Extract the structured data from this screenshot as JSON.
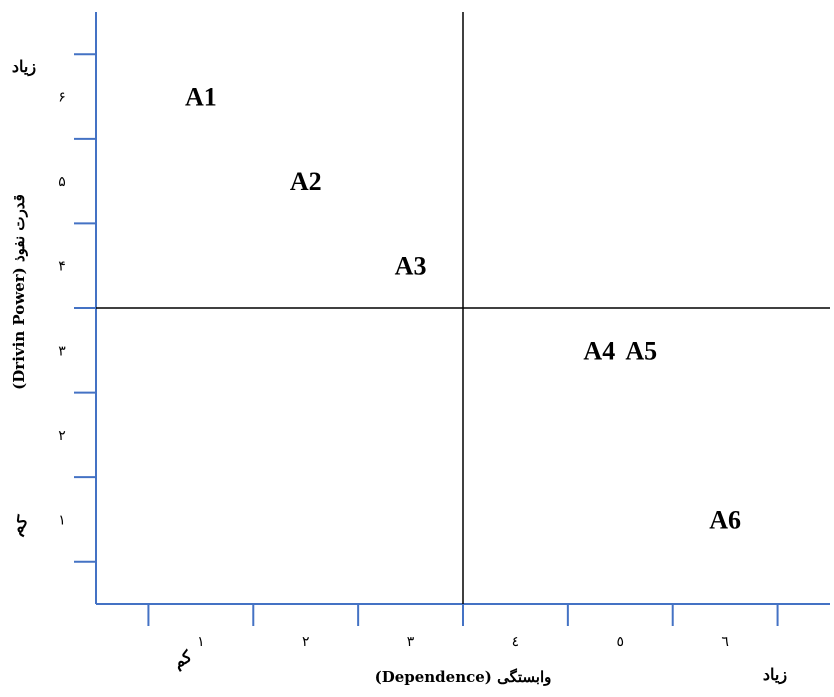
{
  "chart_data": {
    "type": "scatter",
    "xlabel": "وابستگی (Dependence)",
    "ylabel": "قدرت نفوذ (Drivin Power)",
    "x_ticks": [
      "١",
      "٢",
      "٣",
      "٤",
      "٥",
      "٦"
    ],
    "y_ticks": [
      "١",
      "٢",
      "٣",
      "۴",
      "۵",
      "۶"
    ],
    "x_axis_low": "کم",
    "x_axis_high": "زیاد",
    "y_axis_low": "کم",
    "y_axis_high": "زیاد",
    "points": [
      {
        "label": "A1",
        "x": 1.0,
        "y": 6.0
      },
      {
        "label": "A2",
        "x": 2.0,
        "y": 5.0
      },
      {
        "label": "A3",
        "x": 3.0,
        "y": 4.0
      },
      {
        "label": "A4",
        "x": 4.8,
        "y": 3.0
      },
      {
        "label": "A5",
        "x": 5.2,
        "y": 3.0
      },
      {
        "label": "A6",
        "x": 6.0,
        "y": 1.0
      }
    ],
    "xlim": [
      0,
      7
    ],
    "ylim": [
      0,
      7
    ],
    "quadrant_dividers": {
      "x": 3.5,
      "y": 3.5
    },
    "colors": {
      "axis": "#4472c4",
      "divider": "#000000",
      "text": "#000000"
    }
  }
}
